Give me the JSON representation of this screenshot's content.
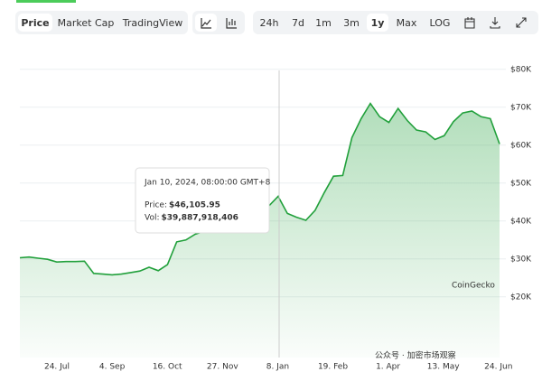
{
  "toolbar": {
    "tabs": [
      "Price",
      "Market Cap",
      "TradingView"
    ],
    "ranges": [
      "24h",
      "7d",
      "1m",
      "3m",
      "1y",
      "Max",
      "LOG"
    ]
  },
  "chart_data": {
    "type": "area",
    "color": "#21a03b",
    "grid": true,
    "x_tick_labels": [
      "24. Jul",
      "4. Sep",
      "16. Oct",
      "27. Nov",
      "8. Jan",
      "19. Feb",
      "1. Apr",
      "13. May",
      "24. Jun"
    ],
    "values": [
      30300,
      30500,
      30200,
      29900,
      29200,
      29300,
      29300,
      29400,
      26200,
      26000,
      25800,
      26000,
      26400,
      26800,
      27800,
      26900,
      28500,
      34500,
      35000,
      36500,
      37300,
      37500,
      37600,
      41500,
      43800,
      42800,
      43500,
      44000,
      46500,
      42000,
      41000,
      40200,
      42800,
      47500,
      51800,
      52000,
      62000,
      67000,
      71000,
      67500,
      66000,
      69700,
      66500,
      64000,
      63500,
      61500,
      62500,
      66200,
      68500,
      69000,
      67500,
      67000,
      60300
    ],
    "ylim": [
      4000,
      84000
    ],
    "yticks": [
      {
        "value": 20000,
        "label": "$20K"
      },
      {
        "value": 30000,
        "label": "$30K"
      },
      {
        "value": 40000,
        "label": "$40K"
      },
      {
        "value": 50000,
        "label": "$50K"
      },
      {
        "value": 60000,
        "label": "$60K"
      },
      {
        "value": 70000,
        "label": "$70K"
      },
      {
        "value": 80000,
        "label": "$80K"
      }
    ],
    "tooltip": {
      "date": "Jan 10, 2024, 08:00:00 GMT+8",
      "price_label": "Price:",
      "price": "$46,105.95",
      "vol_label": "Vol:",
      "vol": "$39,887,918,406"
    },
    "watermark": "CoinGecko",
    "footer_watermark": "公众号 · 加密市场观察"
  }
}
